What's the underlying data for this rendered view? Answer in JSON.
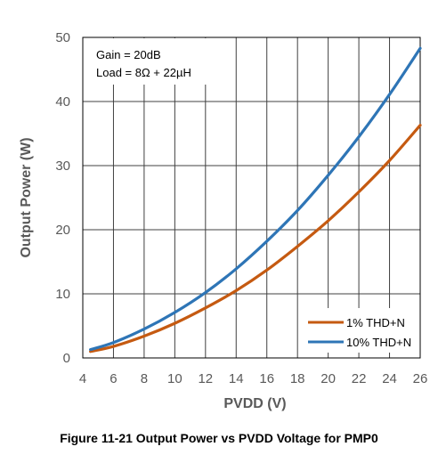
{
  "caption": "Figure 11-21 Output Power vs PVDD Voltage for PMP0",
  "chart_data": {
    "type": "line",
    "xlabel": "PVDD (V)",
    "ylabel": "Output Power (W)",
    "xlim": [
      4,
      26
    ],
    "ylim": [
      0,
      50
    ],
    "x_ticks": [
      4,
      6,
      8,
      10,
      12,
      14,
      16,
      18,
      20,
      22,
      24,
      26
    ],
    "y_ticks": [
      0,
      10,
      20,
      30,
      40,
      50
    ],
    "grid": true,
    "annotations": [
      "Gain = 20dB",
      "Load = 8Ω + 22µH"
    ],
    "legend_position": "bottom-right",
    "x": [
      4.5,
      6,
      8,
      10,
      12,
      14,
      16,
      18,
      20,
      22,
      24,
      26
    ],
    "series": [
      {
        "name": "1% THD+N",
        "color": "#c55a11",
        "values": [
          1.0,
          1.8,
          3.4,
          5.4,
          7.8,
          10.5,
          13.7,
          17.4,
          21.4,
          25.9,
          30.8,
          36.3
        ]
      },
      {
        "name": "10% THD+N",
        "color": "#2e75b6",
        "values": [
          1.3,
          2.4,
          4.5,
          7.1,
          10.2,
          13.9,
          18.2,
          23.0,
          28.5,
          34.5,
          41.1,
          48.3
        ]
      }
    ]
  }
}
